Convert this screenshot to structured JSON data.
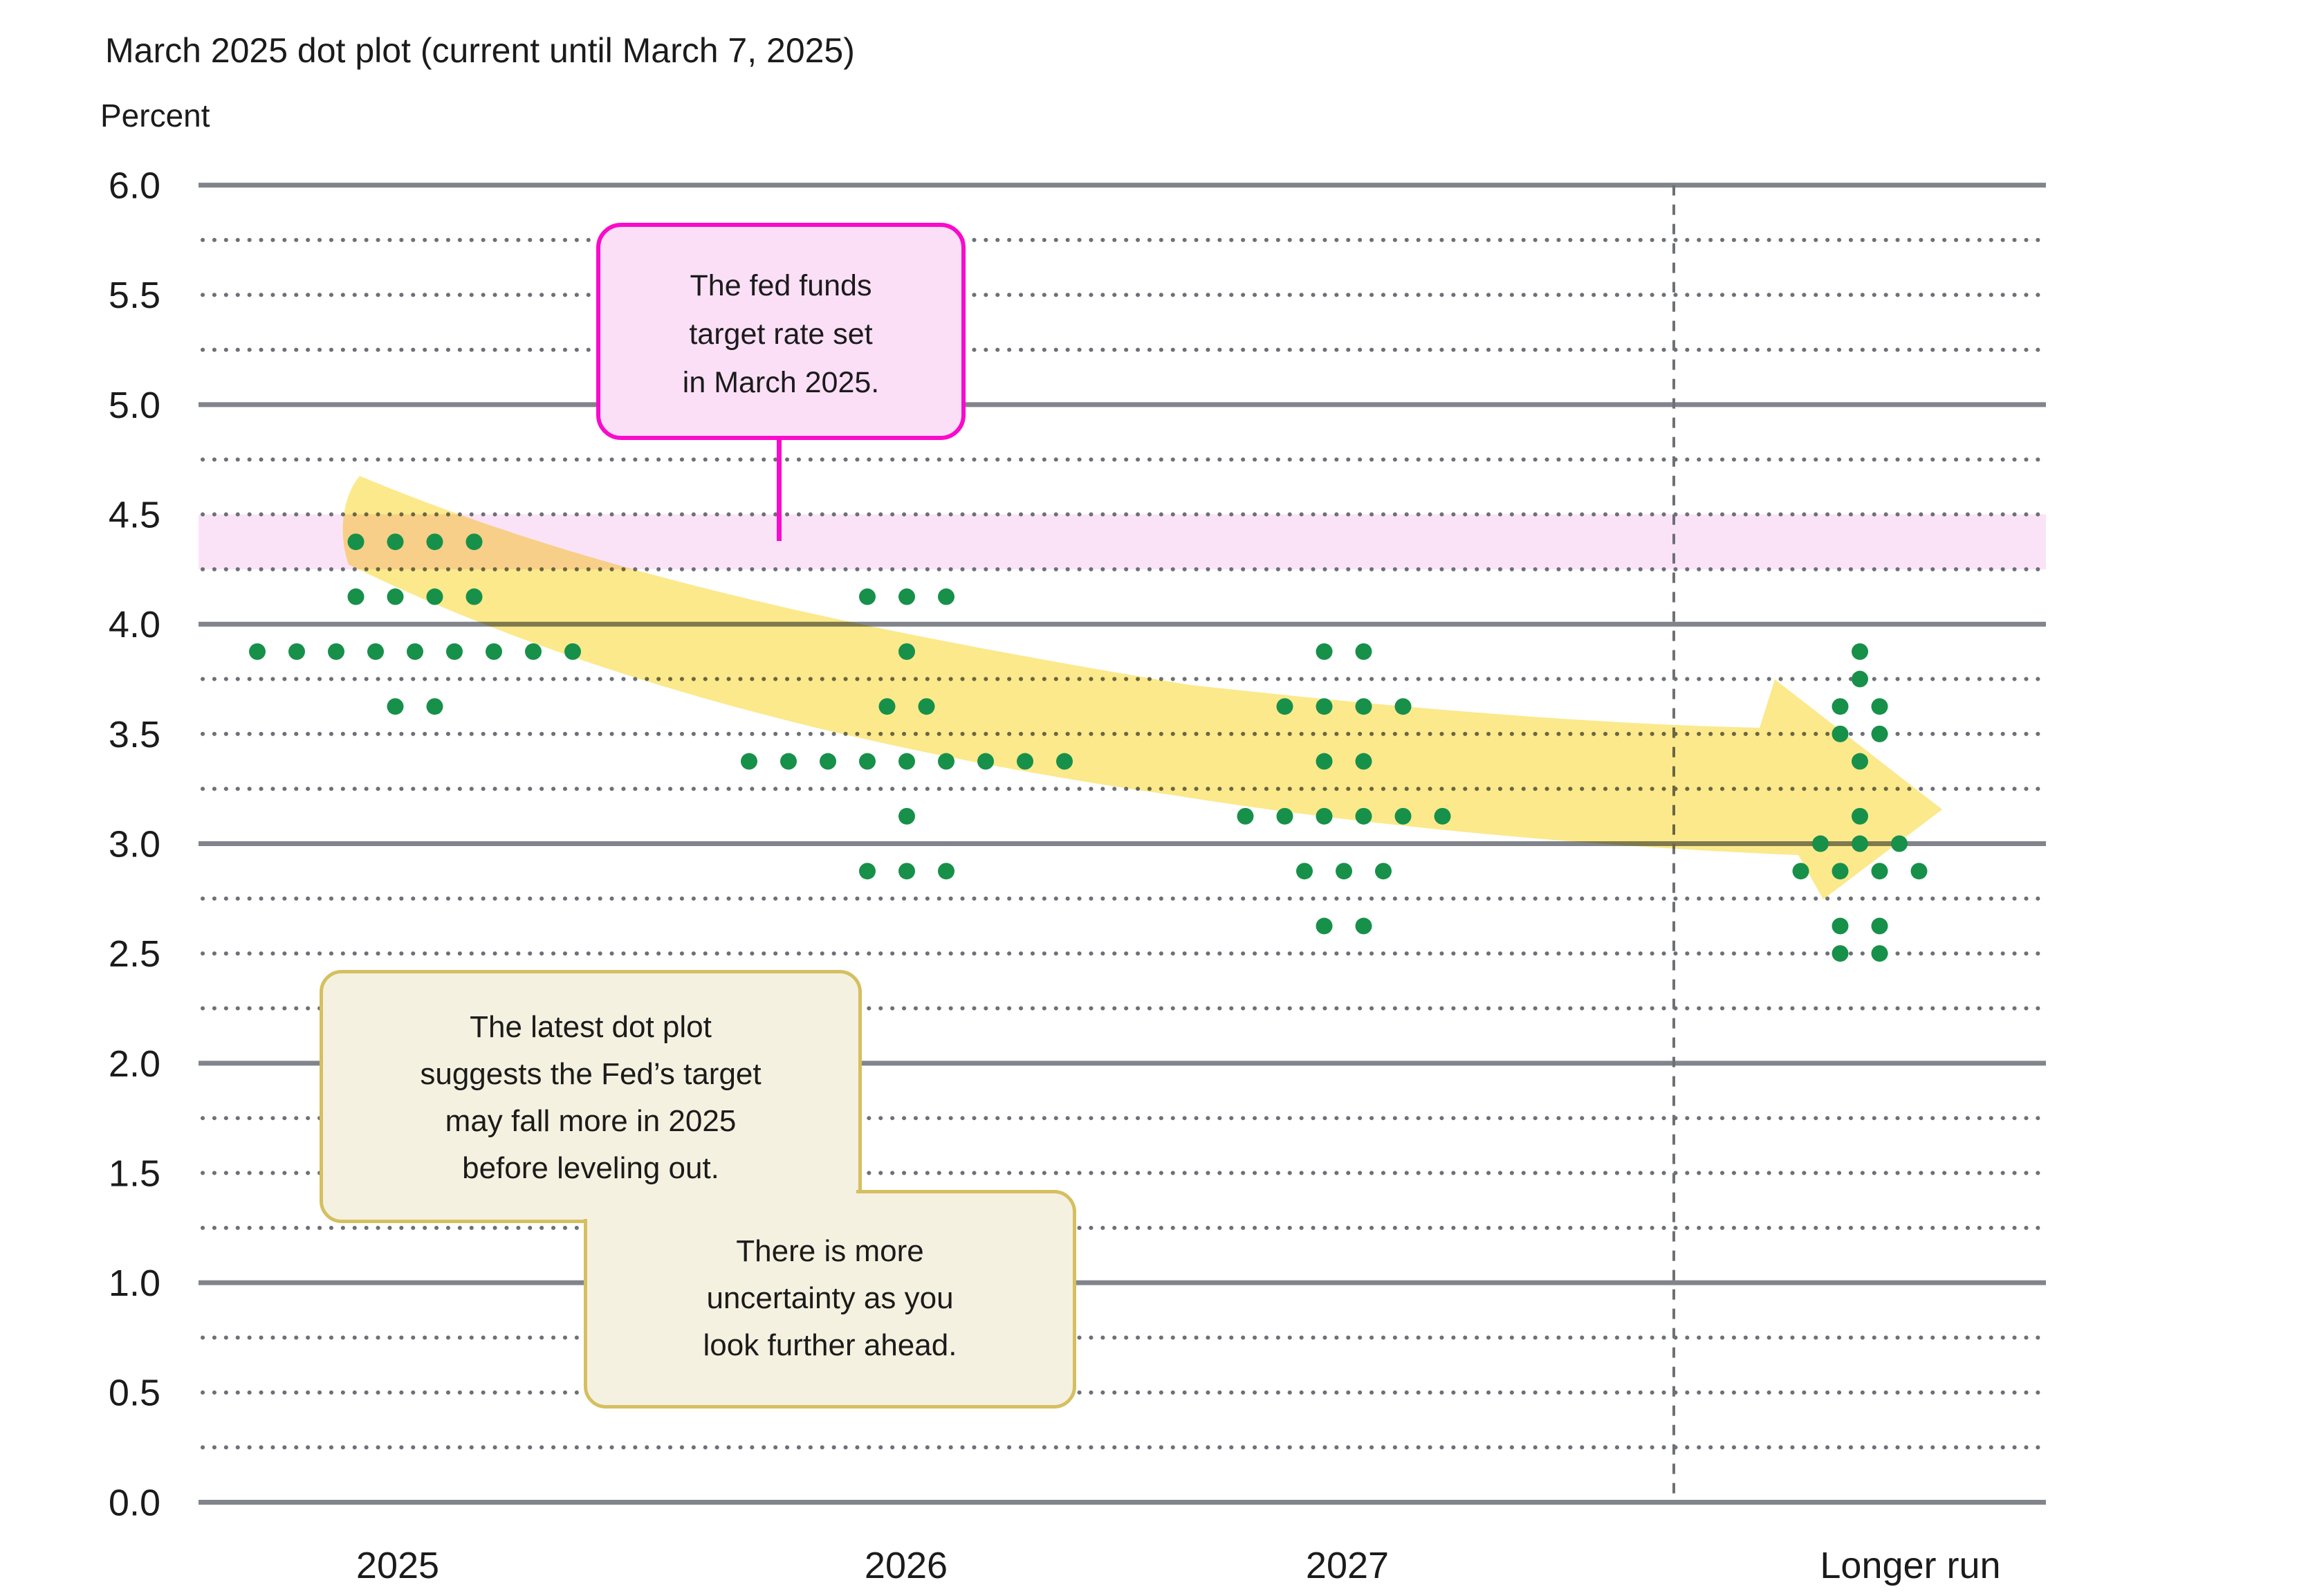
{
  "title": "March 2025 dot plot (current until March 7, 2025)",
  "y_axis_label": "Percent",
  "colors": {
    "dot_green": "#17904a",
    "grid_solid": "#81858b",
    "grid_dotted": "#6d7076",
    "dashed_divider": "#6d7076",
    "target_band_pink": "#fbe3f7",
    "arrow_yellow": "#fbe98c",
    "callout_fill": "#fbdff7",
    "callout_border": "#fa0acd",
    "note_fill": "#f5f1e0",
    "note_border": "#d5bf60",
    "text": "#1b1b1b"
  },
  "chart_data": {
    "type": "scatter",
    "subtype": "fomc-dot-plot",
    "title": "March 2025 dot plot (current until March 7, 2025)",
    "ylabel": "Percent",
    "ylim": [
      0,
      6
    ],
    "y_tick_step": 0.5,
    "y_tick_labels": [
      "6.0",
      "5.5",
      "5.0",
      "4.5",
      "4.0",
      "3.5",
      "3.0",
      "2.5",
      "2.0",
      "1.5",
      "1.0",
      "0.5",
      "0.0"
    ],
    "grid": "solid gray lines at integers, dotted gray lines at quarter points",
    "categories": [
      "2025",
      "2026",
      "2027",
      "Longer run"
    ],
    "target_band": {
      "from": 4.25,
      "to": 4.5,
      "meaning": "fed funds target range set in March 2025"
    },
    "dots": {
      "2025": [
        {
          "rate": 4.375,
          "count": 4
        },
        {
          "rate": 4.125,
          "count": 4
        },
        {
          "rate": 3.875,
          "count": 9
        },
        {
          "rate": 3.625,
          "count": 2
        }
      ],
      "2026": [
        {
          "rate": 4.125,
          "count": 3
        },
        {
          "rate": 3.875,
          "count": 1
        },
        {
          "rate": 3.625,
          "count": 2
        },
        {
          "rate": 3.375,
          "count": 9
        },
        {
          "rate": 3.125,
          "count": 1
        },
        {
          "rate": 2.875,
          "count": 3
        }
      ],
      "2027": [
        {
          "rate": 3.875,
          "count": 2
        },
        {
          "rate": 3.625,
          "count": 4
        },
        {
          "rate": 3.375,
          "count": 2
        },
        {
          "rate": 3.125,
          "count": 6
        },
        {
          "rate": 2.875,
          "count": 3
        },
        {
          "rate": 2.625,
          "count": 2
        }
      ],
      "Longer run": [
        {
          "rate": 3.875,
          "count": 1
        },
        {
          "rate": 3.75,
          "count": 1
        },
        {
          "rate": 3.625,
          "count": 2
        },
        {
          "rate": 3.5,
          "count": 2
        },
        {
          "rate": 3.375,
          "count": 1
        },
        {
          "rate": 3.125,
          "count": 1
        },
        {
          "rate": 3.0,
          "count": 3
        },
        {
          "rate": 2.875,
          "count": 4
        },
        {
          "rate": 2.625,
          "count": 2
        },
        {
          "rate": 2.5,
          "count": 2
        }
      ]
    }
  },
  "annotations": {
    "target_note": {
      "lines": [
        "The fed funds",
        "target rate set",
        "in March 2025."
      ]
    },
    "trend_note": {
      "lines": [
        "The latest dot plot",
        "suggests the Fed’s target",
        "may fall more in 2025",
        "before leveling out."
      ]
    },
    "uncertainty_note": {
      "lines": [
        "There is more",
        "uncertainty as you",
        "look further ahead."
      ]
    }
  }
}
